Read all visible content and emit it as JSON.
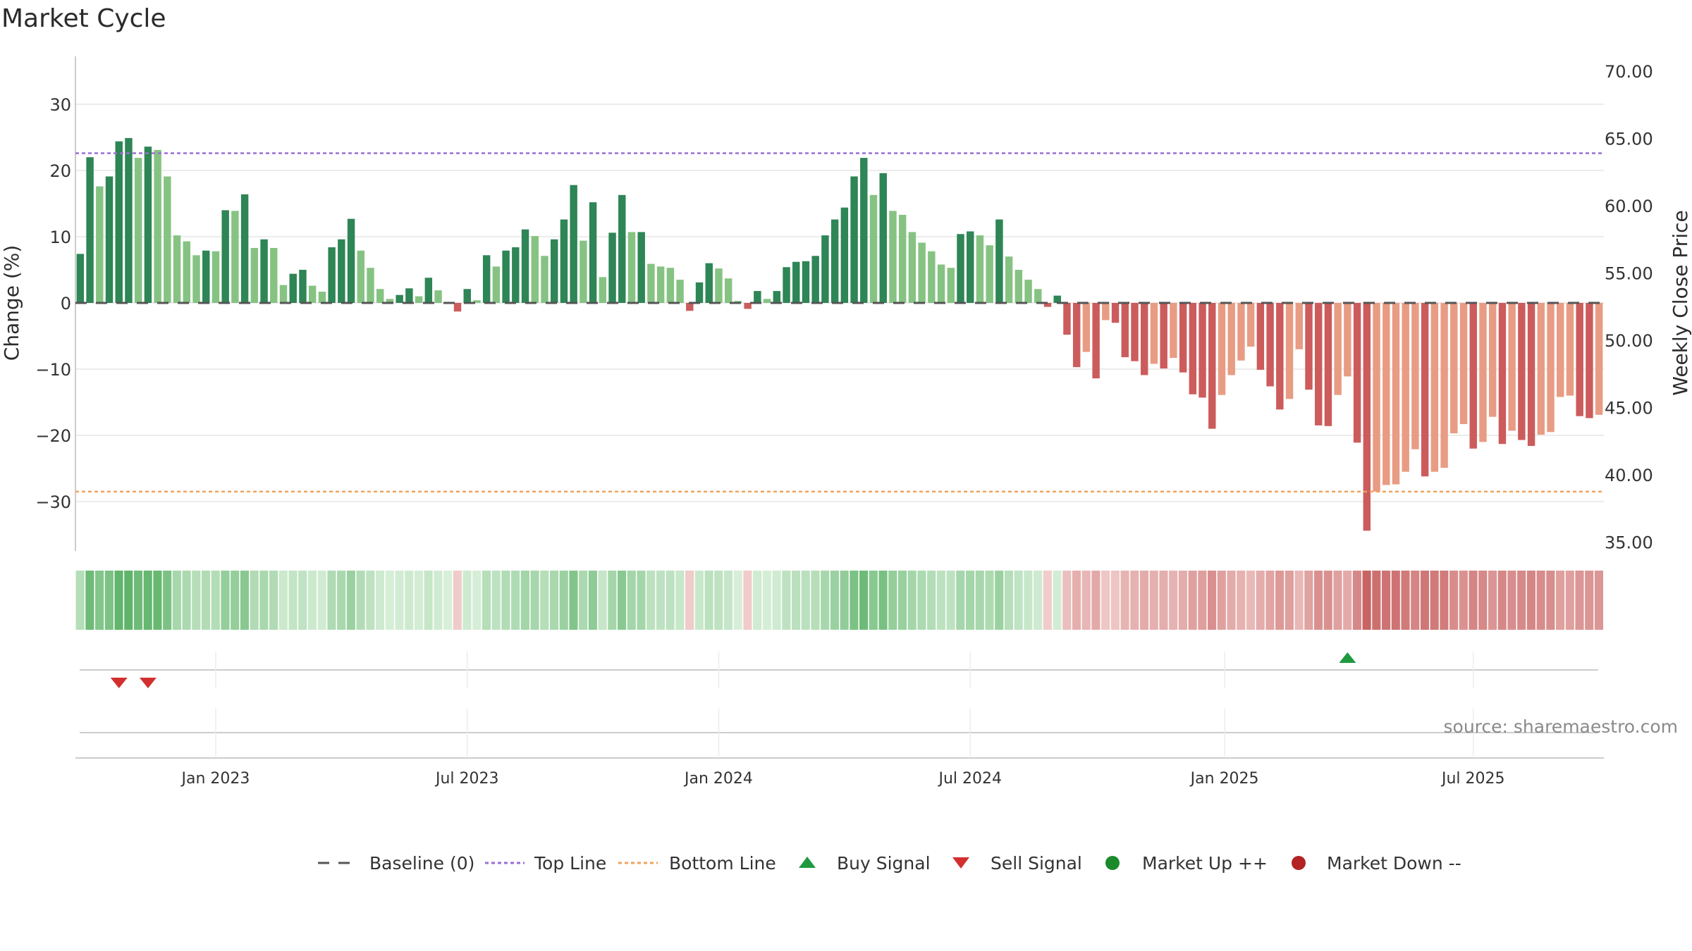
{
  "chart_data": {
    "type": "bar",
    "title": "Market Cycle",
    "ylabel_left": "Change (%)",
    "ylabel_right": "Weekly Close Price",
    "source": "source: sharemaestro.com",
    "ylim_left": [
      -37,
      38
    ],
    "ylim_right": [
      34.5,
      71
    ],
    "yticks_left": [
      30,
      20,
      10,
      0,
      -10,
      -20,
      -30
    ],
    "ytick_labels_left": [
      "30",
      "20",
      "10",
      "0",
      "−10",
      "−20",
      "−30"
    ],
    "yticks_right": [
      70,
      65,
      60,
      55,
      50,
      45,
      40,
      35
    ],
    "ytick_labels_right": [
      "70.00",
      "65.00",
      "60.00",
      "55.00",
      "50.00",
      "45.00",
      "40.00",
      "35.00"
    ],
    "x_tick_labels": [
      "Jan 2023",
      "Jul 2023",
      "Jan 2024",
      "Jul 2024",
      "Jan 2025",
      "Jul 2025"
    ],
    "x_tick_weeks": [
      14.5,
      40.5,
      66.5,
      92.5,
      118.8,
      144.5
    ],
    "top_line": 22.6,
    "bottom_line": -28.5,
    "colors": {
      "up_strong": "#2e8555",
      "up_weak": "#86c383",
      "down_strong": "#cc5c5c",
      "down_weak": "#e89c84",
      "top_line": "#9b6fd1",
      "bottom_line": "#f0a35e",
      "buy": "#1f9a3e",
      "sell": "#d32f2f",
      "market_up": "#1a8a2a",
      "market_down": "#b22222",
      "baseline": "#555555"
    },
    "values": [
      7.4,
      22,
      17.6,
      19.1,
      24.4,
      24.9,
      21.9,
      23.6,
      23.1,
      19.1,
      10.2,
      9.3,
      7.2,
      7.9,
      7.8,
      14,
      13.9,
      16.4,
      8.3,
      9.6,
      8.3,
      2.7,
      4.4,
      5,
      2.6,
      1.7,
      8.4,
      9.6,
      12.7,
      7.9,
      5.3,
      2.1,
      0.6,
      1.2,
      2.2,
      1,
      3.8,
      1.9,
      0.1,
      -1.3,
      2.1,
      0.4,
      7.2,
      5.5,
      7.9,
      8.4,
      11.1,
      10.1,
      7.1,
      9.6,
      12.6,
      17.8,
      9.4,
      15.2,
      3.9,
      10.6,
      16.3,
      10.7,
      10.7,
      5.9,
      5.5,
      5.3,
      3.5,
      -1.2,
      3.1,
      6,
      5.2,
      3.7,
      0.3,
      -0.9,
      1.8,
      0.6,
      1.8,
      5.4,
      6.2,
      6.3,
      7.1,
      10.2,
      12.6,
      14.4,
      19.1,
      21.9,
      16.3,
      19.6,
      13.9,
      13.3,
      10.7,
      9.1,
      7.8,
      5.8,
      5.3,
      10.4,
      10.8,
      10.2,
      8.7,
      12.6,
      7,
      5,
      3.5,
      2.1,
      -0.6,
      1.1,
      -4.8,
      -9.7,
      -7.4,
      -11.4,
      -2.6,
      -3,
      -8.2,
      -8.8,
      -10.9,
      -9.2,
      -9.9,
      -8.3,
      -10.5,
      -13.8,
      -14.3,
      -19,
      -13.9,
      -10.9,
      -8.7,
      -6.6,
      -10.1,
      -12.6,
      -16.1,
      -14.5,
      -7,
      -13.1,
      -18.5,
      -18.6,
      -13.9,
      -11.1,
      -21.1,
      -34.4,
      -28.5,
      -27.5,
      -27.4,
      -25.5,
      -22.1,
      -26.2,
      -25.5,
      -24.9,
      -19.7,
      -18.3,
      -22,
      -21,
      -17.2,
      -21.3,
      -19.3,
      -20.7,
      -21.6,
      -19.9,
      -19.5,
      -14.2,
      -14,
      -17.1,
      -17.4,
      -16.9
    ],
    "buy_signal_weeks": [
      131
    ],
    "sell_signal_weeks": [
      4,
      7
    ],
    "legend": [
      {
        "key": "baseline",
        "label": "Baseline (0)"
      },
      {
        "key": "top_line",
        "label": "Top Line"
      },
      {
        "key": "bottom_line",
        "label": "Bottom Line"
      },
      {
        "key": "buy",
        "label": "Buy Signal"
      },
      {
        "key": "sell",
        "label": "Sell Signal"
      },
      {
        "key": "market_up",
        "label": "Market Up ++"
      },
      {
        "key": "market_down",
        "label": "Market Down --"
      }
    ]
  }
}
